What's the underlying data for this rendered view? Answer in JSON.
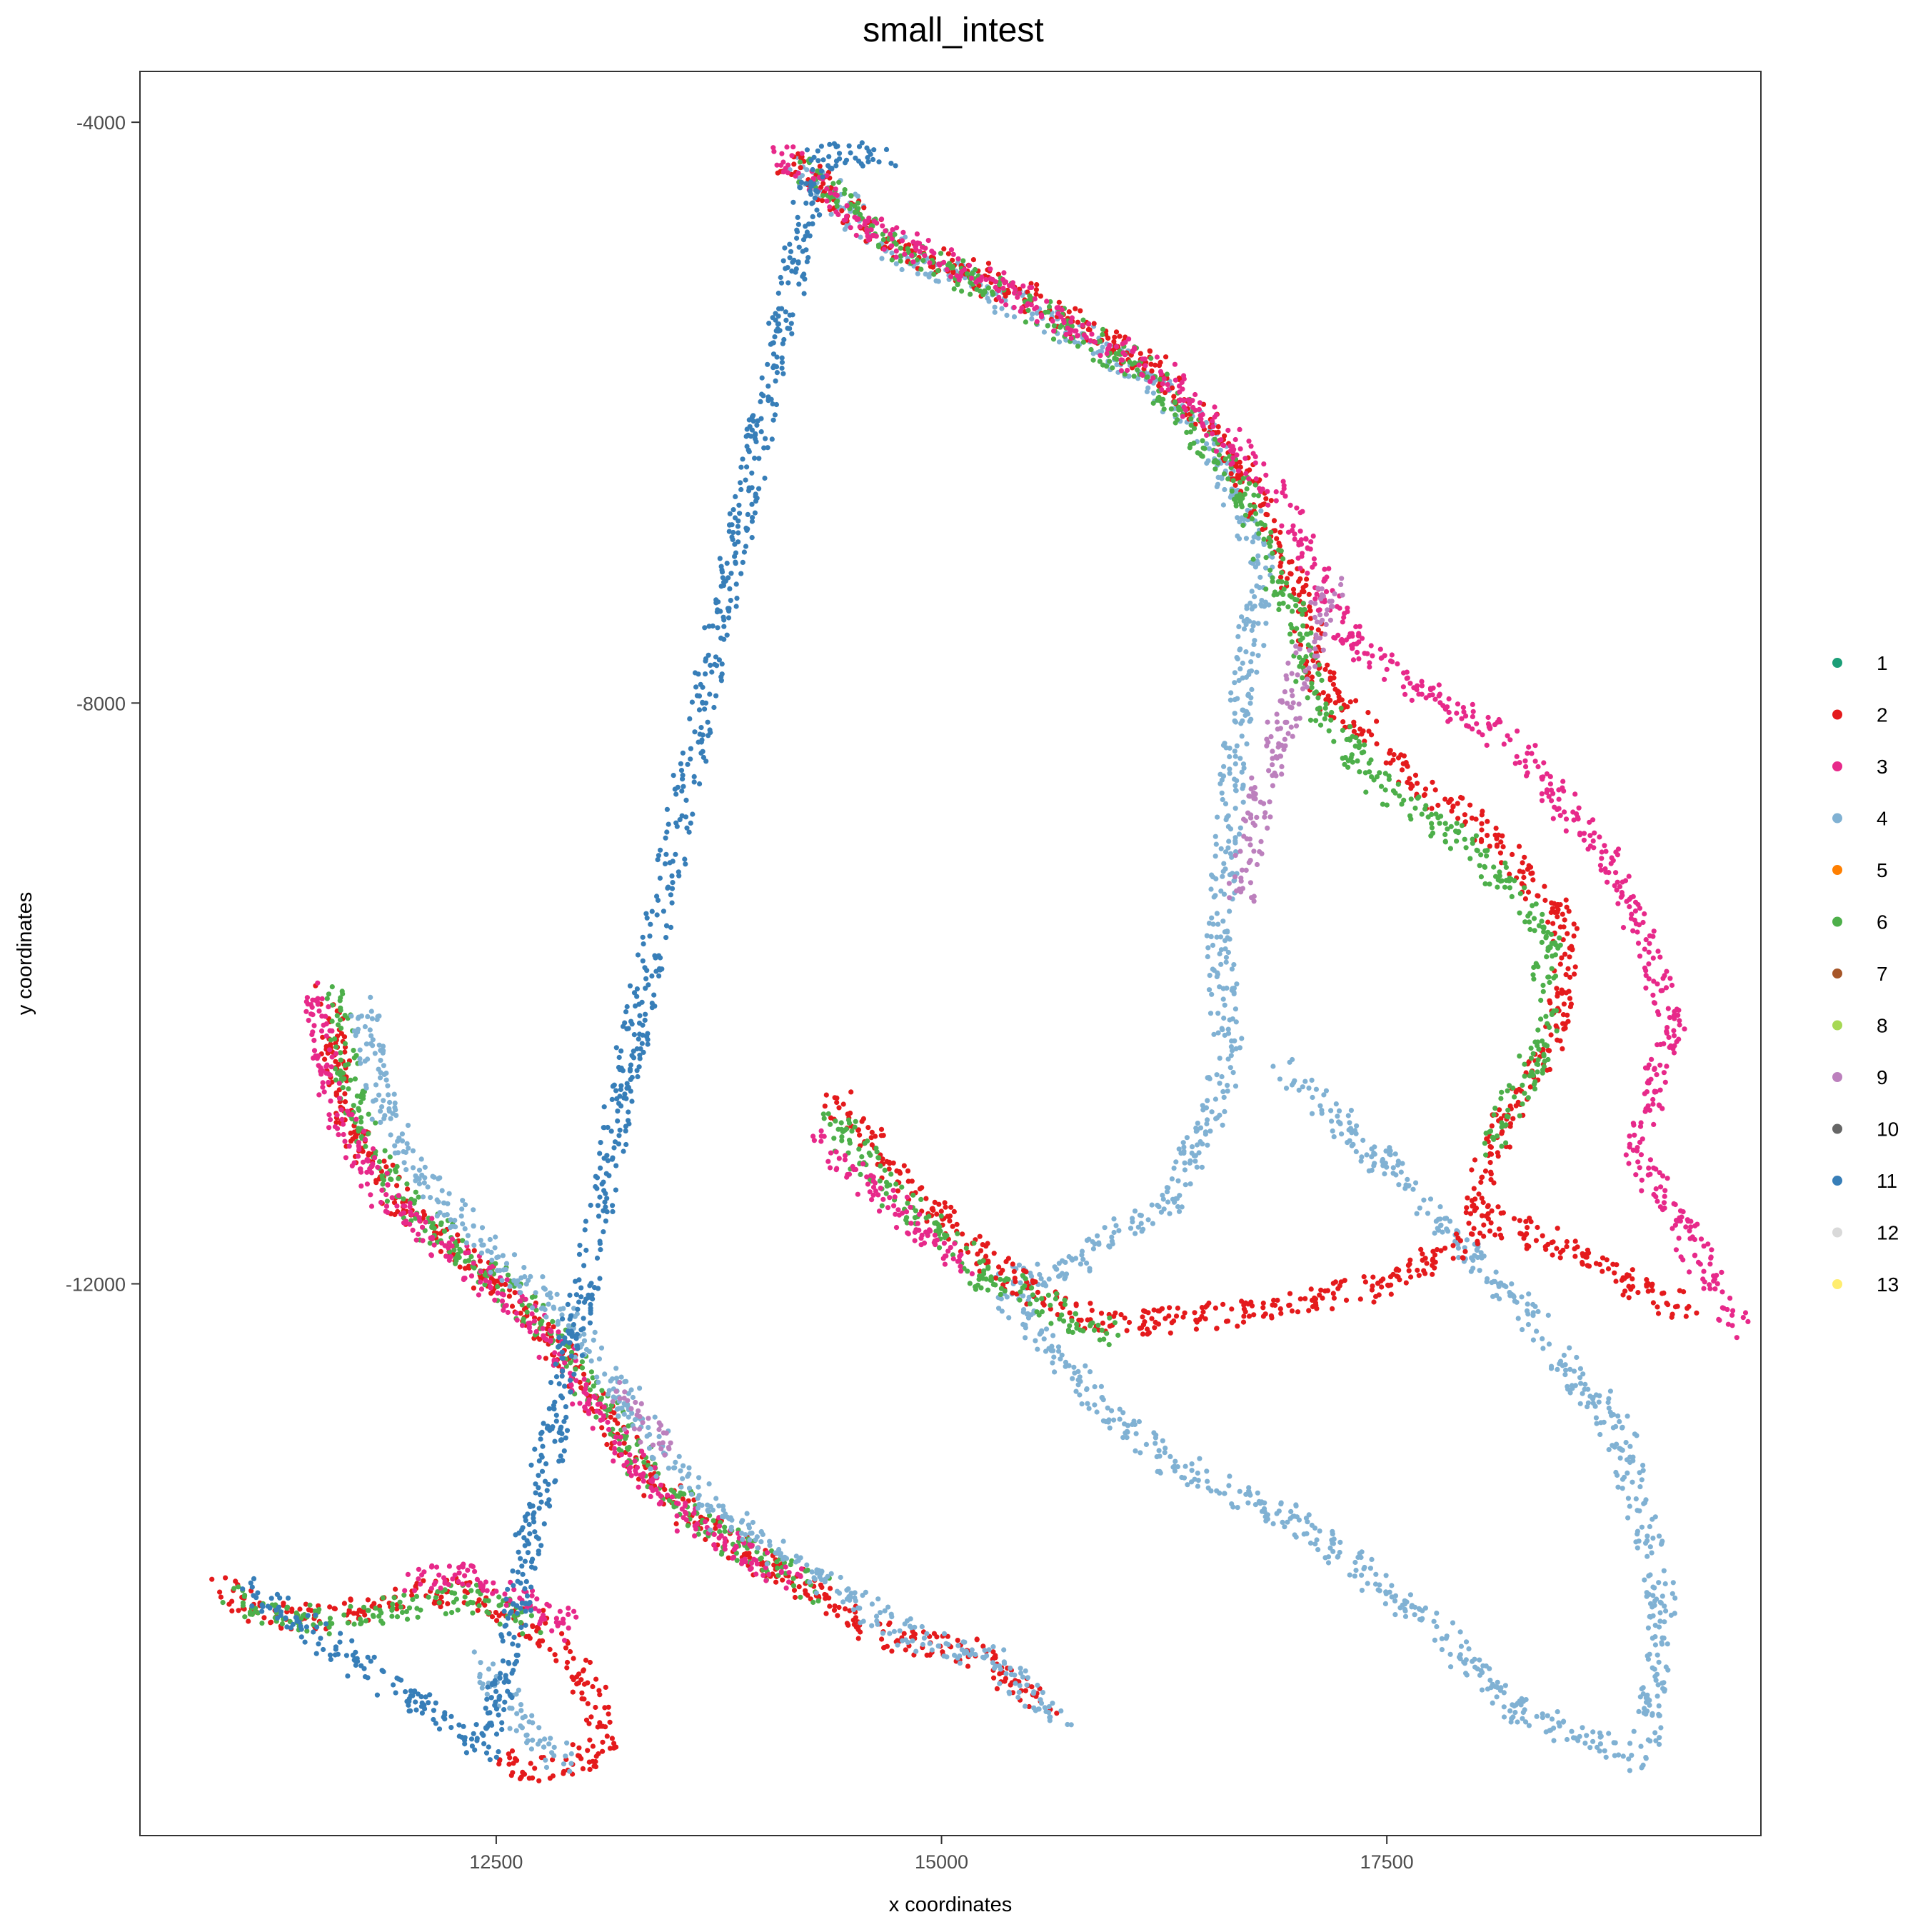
{
  "chart_data": {
    "type": "scatter",
    "title": "small_intest",
    "xlabel": "x coordinates",
    "ylabel": "y coordinates",
    "xlim": [
      10500,
      19600
    ],
    "ylim": [
      -15800,
      -3650
    ],
    "x_ticks": [
      12500,
      15000,
      17500
    ],
    "y_ticks": [
      -4000,
      -8000,
      -12000
    ],
    "grid": false,
    "legend_position": "right",
    "legend": [
      {
        "label": "1",
        "color": "#1b9e77"
      },
      {
        "label": "2",
        "color": "#e41a1c"
      },
      {
        "label": "3",
        "color": "#e7298a"
      },
      {
        "label": "4",
        "color": "#80b1d3"
      },
      {
        "label": "5",
        "color": "#ff7f00"
      },
      {
        "label": "6",
        "color": "#4daf4a"
      },
      {
        "label": "7",
        "color": "#a65628"
      },
      {
        "label": "8",
        "color": "#a6d854"
      },
      {
        "label": "9",
        "color": "#bc80bd"
      },
      {
        "label": "10",
        "color": "#666666"
      },
      {
        "label": "11",
        "color": "#377eb8"
      },
      {
        "label": "12",
        "color": "#d9d9d9"
      },
      {
        "label": "13",
        "color": "#ffed6f"
      }
    ],
    "regions": [
      {
        "cluster": "4",
        "points": [
          [
            14150,
            -4270
          ],
          [
            14400,
            -4520
          ],
          [
            14700,
            -4860
          ],
          [
            15400,
            -5250
          ],
          [
            15950,
            -5600
          ],
          [
            16500,
            -6100
          ],
          [
            16800,
            -7000
          ],
          [
            16650,
            -8300
          ],
          [
            16550,
            -9600
          ],
          [
            16620,
            -10500
          ],
          [
            16300,
            -11400
          ],
          [
            15700,
            -11900
          ],
          [
            15300,
            -12000
          ],
          [
            15850,
            -12800
          ],
          [
            16300,
            -13250
          ],
          [
            17100,
            -13700
          ],
          [
            17800,
            -14400
          ],
          [
            18200,
            -14900
          ],
          [
            18950,
            -15300
          ],
          [
            19050,
            -14200
          ],
          [
            18800,
            -13000
          ],
          [
            18200,
            -12100
          ],
          [
            17600,
            -11300
          ],
          [
            16900,
            -10500
          ]
        ]
      },
      {
        "cluster": "2",
        "points": [
          [
            14130,
            -4250
          ],
          [
            14400,
            -4500
          ],
          [
            14700,
            -4850
          ],
          [
            15500,
            -5200
          ],
          [
            16200,
            -5700
          ],
          [
            16700,
            -6400
          ],
          [
            17000,
            -7200
          ],
          [
            17150,
            -7900
          ],
          [
            17600,
            -8500
          ],
          [
            18100,
            -8900
          ],
          [
            18500,
            -9500
          ],
          [
            18450,
            -10300
          ],
          [
            18100,
            -11000
          ],
          [
            18000,
            -11500
          ],
          [
            18600,
            -11800
          ],
          [
            19200,
            -12200
          ]
        ]
      },
      {
        "cluster": "6",
        "points": [
          [
            14180,
            -4300
          ],
          [
            14450,
            -4560
          ],
          [
            14750,
            -4880
          ],
          [
            15450,
            -5230
          ],
          [
            16100,
            -5680
          ],
          [
            16650,
            -6450
          ],
          [
            16950,
            -7300
          ],
          [
            17100,
            -8000
          ],
          [
            17500,
            -8600
          ],
          [
            18000,
            -9000
          ],
          [
            18400,
            -9600
          ],
          [
            18380,
            -10400
          ],
          [
            18050,
            -11050
          ]
        ]
      },
      {
        "cluster": "3",
        "points": [
          [
            14090,
            -4210
          ],
          [
            14300,
            -4420
          ],
          [
            14600,
            -4760
          ],
          [
            15100,
            -5000
          ],
          [
            15600,
            -5300
          ],
          [
            16300,
            -5800
          ],
          [
            16900,
            -6600
          ],
          [
            17300,
            -7600
          ],
          [
            18250,
            -8300
          ],
          [
            18800,
            -9200
          ],
          [
            19100,
            -10200
          ],
          [
            18900,
            -11100
          ],
          [
            19500,
            -12300
          ]
        ]
      },
      {
        "cluster": "9",
        "points": [
          [
            16680,
            -9350
          ],
          [
            16800,
            -8600
          ],
          [
            17000,
            -7800
          ],
          [
            17200,
            -7200
          ]
        ]
      },
      {
        "cluster": "2",
        "points": [
          [
            11540,
            -9950
          ],
          [
            11650,
            -10800
          ],
          [
            11950,
            -11450
          ],
          [
            12400,
            -11900
          ],
          [
            12800,
            -12350
          ],
          [
            13050,
            -12800
          ],
          [
            13350,
            -13350
          ],
          [
            13700,
            -13700
          ],
          [
            14250,
            -14100
          ],
          [
            14600,
            -14400
          ],
          [
            15200,
            -14550
          ],
          [
            15600,
            -14900
          ]
        ]
      },
      {
        "cluster": "6",
        "points": [
          [
            11600,
            -9950
          ],
          [
            11700,
            -10820
          ],
          [
            12000,
            -11470
          ],
          [
            12450,
            -11920
          ],
          [
            12850,
            -12380
          ],
          [
            13100,
            -12830
          ],
          [
            13400,
            -13380
          ],
          [
            13750,
            -13720
          ],
          [
            14300,
            -14120
          ]
        ]
      },
      {
        "cluster": "3",
        "points": [
          [
            11480,
            -9920
          ],
          [
            11580,
            -10790
          ],
          [
            11900,
            -11430
          ],
          [
            12350,
            -11870
          ],
          [
            12750,
            -12320
          ],
          [
            13000,
            -12770
          ],
          [
            13300,
            -13320
          ],
          [
            13650,
            -13680
          ],
          [
            14200,
            -14080
          ]
        ]
      },
      {
        "cluster": "4",
        "points": [
          [
            11750,
            -10000
          ],
          [
            11850,
            -10780
          ],
          [
            12150,
            -11400
          ],
          [
            12550,
            -11850
          ],
          [
            12950,
            -12300
          ],
          [
            13200,
            -12750
          ],
          [
            13500,
            -13300
          ],
          [
            13800,
            -13650
          ],
          [
            14350,
            -14050
          ],
          [
            14700,
            -14350
          ],
          [
            15300,
            -14600
          ],
          [
            15700,
            -15050
          ]
        ]
      },
      {
        "cluster": "9",
        "points": [
          [
            13180,
            -12750
          ],
          [
            13300,
            -12950
          ],
          [
            13450,
            -13100
          ]
        ]
      },
      {
        "cluster": "2",
        "points": [
          [
            14400,
            -10700
          ],
          [
            14800,
            -11300
          ],
          [
            15300,
            -11900
          ],
          [
            15900,
            -12300
          ],
          [
            16700,
            -12200
          ],
          [
            17500,
            -12000
          ],
          [
            18100,
            -11600
          ]
        ]
      },
      {
        "cluster": "6",
        "points": [
          [
            14350,
            -10800
          ],
          [
            14700,
            -11350
          ],
          [
            15250,
            -11950
          ],
          [
            15950,
            -12350
          ]
        ]
      },
      {
        "cluster": "3",
        "points": [
          [
            14350,
            -11000
          ],
          [
            14650,
            -11400
          ],
          [
            15150,
            -11900
          ]
        ]
      },
      {
        "cluster": "2",
        "points": [
          [
            10950,
            -14100
          ],
          [
            11150,
            -14250
          ],
          [
            11500,
            -14300
          ],
          [
            11900,
            -14200
          ],
          [
            12300,
            -14100
          ],
          [
            12650,
            -14300
          ],
          [
            12900,
            -14550
          ],
          [
            13050,
            -14850
          ],
          [
            13100,
            -15200
          ],
          [
            12800,
            -15350
          ],
          [
            12500,
            -15300
          ]
        ]
      },
      {
        "cluster": "6",
        "points": [
          [
            11000,
            -14150
          ],
          [
            11200,
            -14280
          ],
          [
            11550,
            -14320
          ],
          [
            11950,
            -14230
          ],
          [
            12350,
            -14130
          ],
          [
            12700,
            -14330
          ]
        ]
      },
      {
        "cluster": "3",
        "points": [
          [
            12000,
            -14050
          ],
          [
            12300,
            -14000
          ],
          [
            12650,
            -14150
          ],
          [
            12950,
            -14400
          ]
        ]
      },
      {
        "cluster": "4",
        "points": [
          [
            12400,
            -14600
          ],
          [
            12550,
            -14850
          ],
          [
            12700,
            -15100
          ],
          [
            12900,
            -15300
          ]
        ]
      },
      {
        "cluster": "11",
        "points": [
          [
            11100,
            -14100
          ],
          [
            12450,
            -15200
          ],
          [
            14300,
            -4250
          ],
          [
            14750,
            -4200
          ]
        ]
      }
    ]
  }
}
